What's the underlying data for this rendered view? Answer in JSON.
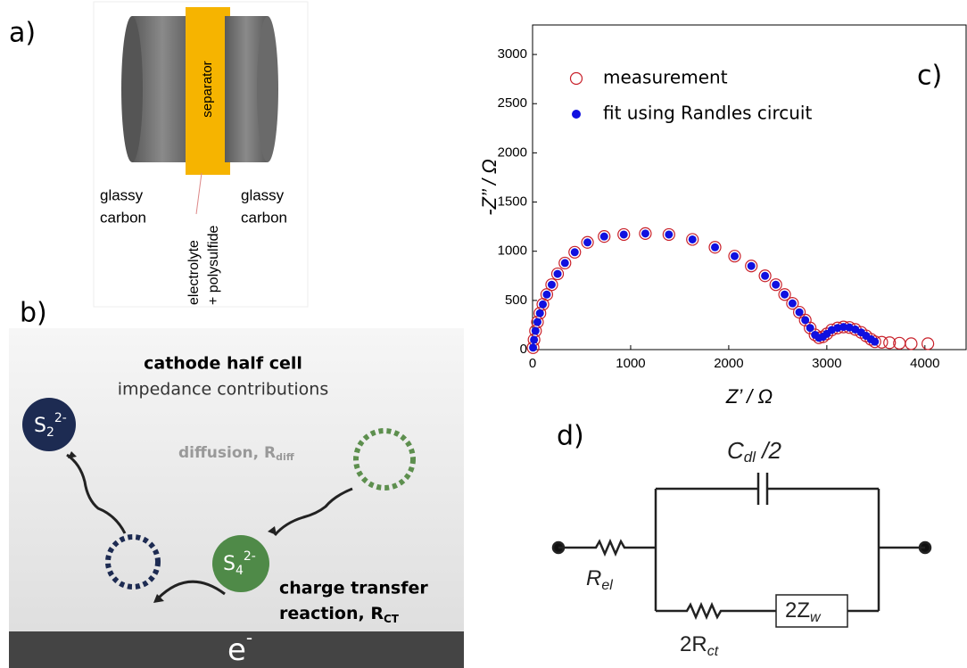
{
  "panels": {
    "a": {
      "label": "a)",
      "separator": "separator",
      "left_label": [
        "glassy",
        "carbon"
      ],
      "right_label": [
        "glassy",
        "carbon"
      ],
      "electrolyte": [
        "electrolyte",
        "+ polysulfide"
      ]
    },
    "b": {
      "label": "b)",
      "title": "cathode half cell",
      "subtitle": "impedance contributions",
      "s2": {
        "base": "S",
        "sub": "2",
        "sup": "2-"
      },
      "s4": {
        "base": "S",
        "sub": "4",
        "sup": "2-"
      },
      "diffusion": {
        "text": "diffusion, R",
        "sub": "diff"
      },
      "charge_transfer": {
        "line1": "charge transfer",
        "line2": "reaction, R",
        "sub": "CT"
      },
      "electron": {
        "base": "e",
        "sup": "-"
      }
    },
    "d": {
      "label": "d)",
      "capacitor": {
        "base": "C",
        "sub": "dl",
        "suffix": " /2"
      },
      "r_el": {
        "base": "R",
        "sub": "el"
      },
      "r_ct": {
        "base": "2R",
        "sub": "ct"
      },
      "z_w": {
        "base": "2Z",
        "sub": "w"
      }
    }
  },
  "chart_data": {
    "type": "scatter",
    "annotation": "c)",
    "xlabel": "Z’ / Ω",
    "ylabel": "-Z’’ / Ω",
    "xlim": [
      0,
      4420
    ],
    "ylim": [
      0,
      3300
    ],
    "xticks": [
      0,
      1000,
      2000,
      3000,
      4000
    ],
    "yticks": [
      0,
      500,
      1000,
      1500,
      2000,
      2500,
      3000
    ],
    "x": [
      5,
      15,
      30,
      50,
      75,
      105,
      145,
      195,
      255,
      330,
      430,
      560,
      730,
      930,
      1150,
      1390,
      1630,
      1860,
      2060,
      2230,
      2370,
      2480,
      2570,
      2650,
      2720,
      2780,
      2830,
      2880,
      2920,
      2960,
      3000,
      3050,
      3110,
      3170,
      3230,
      3290,
      3350,
      3400,
      3450,
      3490,
      3560,
      3640,
      3740,
      3860,
      4030
    ],
    "legend": "upper left",
    "series": [
      {
        "name": "measurement",
        "color": "#c8202a",
        "marker": "open",
        "values": [
          20,
          100,
          190,
          280,
          370,
          460,
          560,
          660,
          770,
          880,
          990,
          1090,
          1150,
          1170,
          1180,
          1170,
          1120,
          1040,
          950,
          850,
          750,
          660,
          560,
          470,
          380,
          300,
          220,
          150,
          120,
          130,
          160,
          200,
          220,
          230,
          225,
          205,
          175,
          140,
          105,
          80,
          75,
          70,
          65,
          60,
          60
        ]
      },
      {
        "name": "fit using Randles circuit",
        "color": "#1010e0",
        "marker": "filled",
        "values": [
          20,
          100,
          190,
          280,
          370,
          460,
          560,
          660,
          770,
          880,
          990,
          1090,
          1150,
          1170,
          1180,
          1170,
          1120,
          1040,
          950,
          850,
          750,
          660,
          560,
          470,
          380,
          300,
          220,
          150,
          120,
          130,
          160,
          200,
          220,
          230,
          225,
          205,
          175,
          140,
          105,
          80,
          null,
          null,
          null,
          null,
          null
        ]
      }
    ]
  }
}
